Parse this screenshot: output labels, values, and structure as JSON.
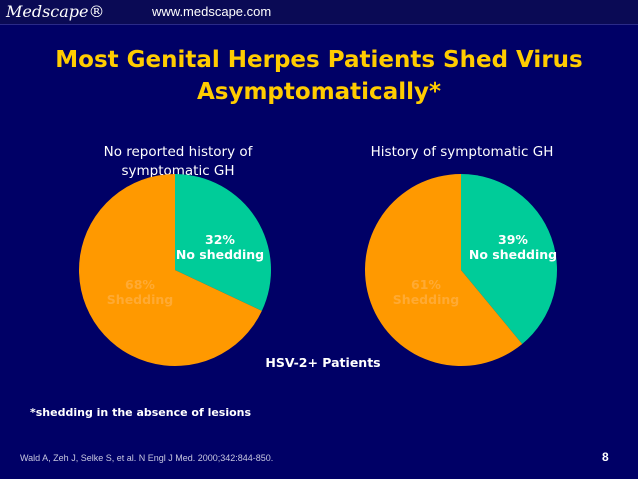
{
  "header": {
    "brand": "Medscape®",
    "url": "www.medscape.com"
  },
  "title": "Most Genital Herpes Patients Shed Virus Asymptomatically*",
  "colors": {
    "background": "#000066",
    "title": "#ffcc00",
    "shedding": "#ff9900",
    "no_shedding": "#00cc99"
  },
  "chart_data": [
    {
      "type": "pie",
      "title": "No reported history of symptomatic GH",
      "slices": [
        {
          "label": "No shedding",
          "value": 32,
          "display": "32%"
        },
        {
          "label": "Shedding",
          "value": 68,
          "display": "68%"
        }
      ]
    },
    {
      "type": "pie",
      "title": "History of symptomatic GH",
      "slices": [
        {
          "label": "No shedding",
          "value": 39,
          "display": "39%"
        },
        {
          "label": "Shedding",
          "value": 61,
          "display": "61%"
        }
      ]
    }
  ],
  "center_label": "HSV-2+ Patients",
  "footnote": "*shedding in the absence of lesions",
  "reference": "Wald A, Zeh J, Selke S, et al. N Engl J Med. 2000;342:844-850.",
  "page_number": "8"
}
